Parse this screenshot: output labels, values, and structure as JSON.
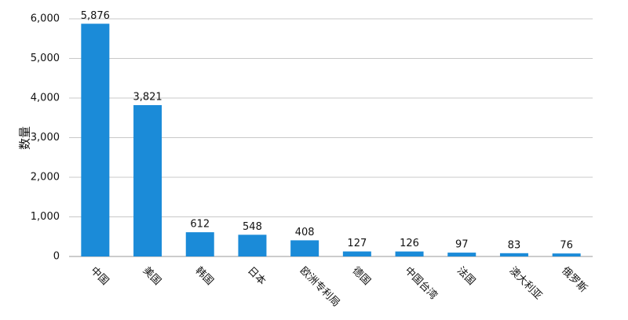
{
  "chart_data": {
    "type": "bar",
    "y_label": "数量",
    "categories": [
      "中国",
      "美国",
      "韩国",
      "日本",
      "欧洲专利局",
      "德国",
      "中国台湾",
      "法国",
      "澳大利亚",
      "俄罗斯"
    ],
    "values": [
      5876,
      3821,
      612,
      548,
      408,
      127,
      126,
      97,
      83,
      76
    ],
    "value_labels": [
      "5,876",
      "3,821",
      "612",
      "548",
      "408",
      "127",
      "126",
      "97",
      "83",
      "76"
    ],
    "color": "#1b8bd8",
    "ylim": [
      0,
      6000
    ],
    "yticks": [
      0,
      {
        "value": 1000,
        "label": "1,000"
      },
      {
        "value": 2000,
        "label": "2,000"
      },
      {
        "value": 3000,
        "label": "3,000"
      },
      {
        "value": 4000,
        "label": "4,000"
      },
      {
        "value": 5000,
        "label": "5,000"
      },
      {
        "value": 6000,
        "label": "6,000"
      }
    ],
    "grid": true
  }
}
